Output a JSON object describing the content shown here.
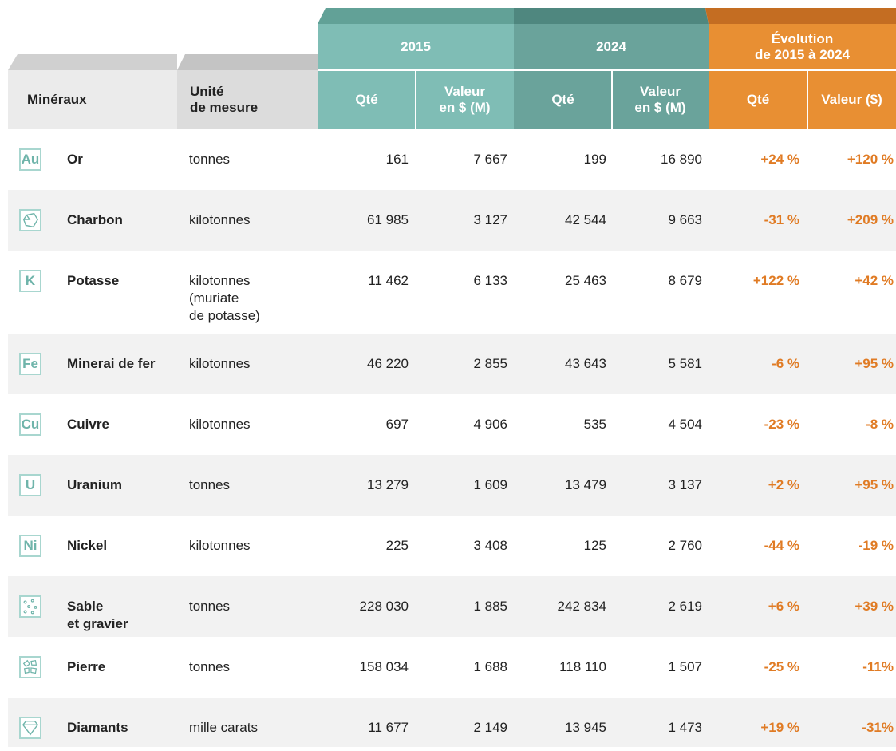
{
  "header": {
    "groups": [
      "2015",
      "2024",
      "Évolution\nde 2015 à 2024"
    ],
    "columns": [
      "Minéraux",
      "Unité\nde mesure",
      "Qté",
      "Valeur\nen $ (M)",
      "Qté",
      "Valeur\nen $ (M)",
      "Qté",
      "Valeur ($)"
    ]
  },
  "rows": [
    {
      "icon": "Au",
      "name": "Or",
      "unit": "tonnes",
      "cells": [
        "161",
        "7 667",
        "199",
        "16 890",
        "+24 %",
        "+120 %"
      ]
    },
    {
      "name": "Charbon",
      "unit": "kilotonnes",
      "cells": [
        "61 985",
        "3 127",
        "42 544",
        "9 663",
        "-31 %",
        "+209 %"
      ]
    },
    {
      "icon": "K",
      "name": "Potasse",
      "unit": "kilotonnes\n(muriate\nde potasse)",
      "cells": [
        "11 462",
        "6 133",
        "25 463",
        "8 679",
        "+122 %",
        "+42 %"
      ]
    },
    {
      "icon": "Fe",
      "name": "Minerai de fer",
      "unit": "kilotonnes",
      "cells": [
        "46 220",
        "2 855",
        "43 643",
        "5 581",
        "-6 %",
        "+95 %"
      ]
    },
    {
      "icon": "Cu",
      "name": "Cuivre",
      "unit": "kilotonnes",
      "cells": [
        "697",
        "4 906",
        "535",
        "4 504",
        "-23 %",
        "-8 %"
      ]
    },
    {
      "icon": "U",
      "name": "Uranium",
      "unit": "tonnes",
      "cells": [
        "13 279",
        "1 609",
        "13 479",
        "3 137",
        "+2 %",
        "+95 %"
      ]
    },
    {
      "icon": "Ni",
      "name": "Nickel",
      "unit": "kilotonnes",
      "cells": [
        "225",
        "3 408",
        "125",
        "2 760",
        "-44 %",
        "-19 %"
      ]
    },
    {
      "name": "Sable\net gravier",
      "unit": "tonnes",
      "cells": [
        "228 030",
        "1 885",
        "242 834",
        "2 619",
        "+6 %",
        "+39 %"
      ]
    },
    {
      "name": "Pierre",
      "unit": "tonnes",
      "cells": [
        "158 034",
        "1 688",
        "118 110",
        "1 507",
        "-25 %",
        "-11%"
      ]
    },
    {
      "name": "Diamants",
      "unit": "mille carats",
      "cells": [
        "11 677",
        "2 149",
        "13 945",
        "1 473",
        "+19 %",
        "-31%"
      ]
    }
  ]
}
